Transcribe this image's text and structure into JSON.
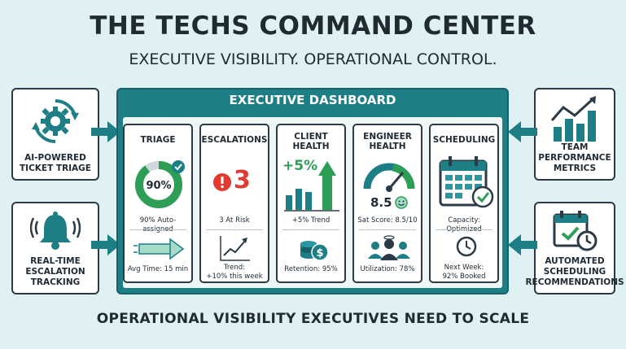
{
  "header": {
    "title": "THE TECHS COMMAND CENTER",
    "subtitle": "EXECUTIVE VISIBILITY. OPERATIONAL CONTROL."
  },
  "footer": {
    "tagline": "OPERATIONAL VISIBILITY EXECUTIVES NEED TO SCALE"
  },
  "left_features": [
    {
      "label": "AI-POWERED\nTICKET TRIAGE",
      "icon": "gear-cycle-icon"
    },
    {
      "label": "REAL-TIME\nESCALATION\nTRACKING",
      "icon": "alarm-bell-icon"
    }
  ],
  "right_features": [
    {
      "label": "TEAM\nPERFORMANCE\nMETRICS",
      "icon": "bar-chart-trend-icon"
    },
    {
      "label": "AUTOMATED\nSCHEDULING\nRECOMMENDATIONS",
      "icon": "calendar-clock-icon"
    }
  ],
  "dashboard": {
    "title": "EXECUTIVE DASHBOARD",
    "panels": [
      {
        "title": "TRIAGE",
        "gauge_value": "90%",
        "gauge_fraction": 0.9,
        "metric": "90% Auto-assigned",
        "secondary": "Avg Time: 15 min"
      },
      {
        "title": "ESCALATIONS",
        "count": "3",
        "metric": "3 At Risk",
        "secondary": "Trend:\n+10% this week"
      },
      {
        "title": "CLIENT\nHEALTH",
        "trend_value": "+5%",
        "metric": "+5% Trend",
        "secondary": "Retention: 95%"
      },
      {
        "title": "ENGINEER\nHEALTH",
        "score": "8.5",
        "metric": "Sat Score: 8.5/10",
        "secondary": "Utilization: 78%"
      },
      {
        "title": "SCHEDULING",
        "metric": "Capacity: Optimized",
        "secondary": "Next Week:\n92% Booked"
      }
    ]
  },
  "colors": {
    "teal": "#1e7e86",
    "green": "#2e9e57",
    "red": "#e03b2f",
    "dark": "#1f2a33"
  }
}
